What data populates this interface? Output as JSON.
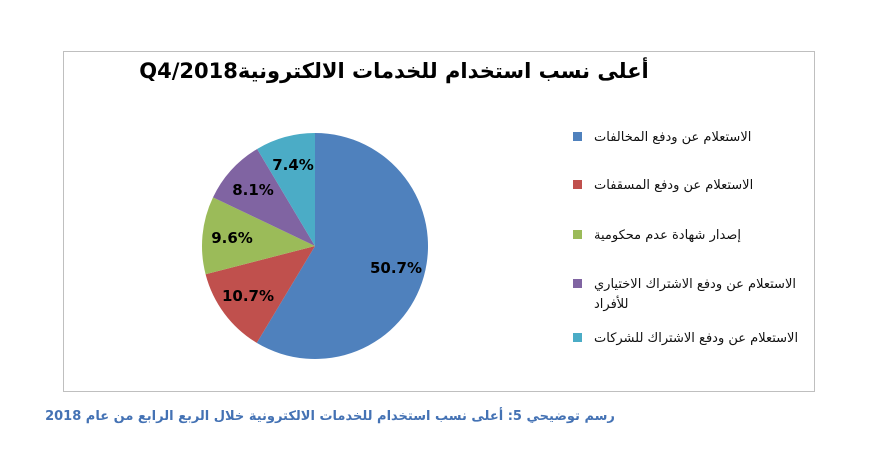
{
  "chart_data": {
    "type": "pie",
    "title": "أعلى نسب استخدام للخدمات الالكترونيةQ4/2018",
    "start_angle_deg": 0,
    "direction": "clockwise",
    "legend_position": "right",
    "slices": [
      {
        "label": "الاستعلام عن ودفع المخالفات",
        "value": 50.7,
        "display": "50.7%",
        "color": "#4F81BD"
      },
      {
        "label": "الاستعلام عن ودفع المسقفات",
        "value": 10.7,
        "display": "10.7%",
        "color": "#C0504D"
      },
      {
        "label": "إصدار شهادة عدم محكومية",
        "value": 9.6,
        "display": "9.6%",
        "color": "#9BBB59"
      },
      {
        "label": "الاستعلام عن ودفع الاشتراك الاختياري للأفراد",
        "value": 8.1,
        "display": "8.1%",
        "color": "#8064A2"
      },
      {
        "label": "الاستعلام عن ودفع الاشتراك للشركات",
        "value": 7.4,
        "display": "7.4%",
        "color": "#4BACC6"
      }
    ]
  },
  "caption": {
    "text": "رسم توضيحي 5: أعلى نسب استخدام للخدمات الالكترونية خلال الربع الرابع من عام 2018"
  },
  "frame": {
    "border_color": "#bfbfbf"
  }
}
